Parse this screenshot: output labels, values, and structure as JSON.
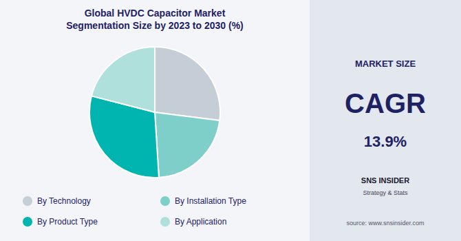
{
  "chart_data": {
    "type": "pie",
    "title": "Global HVDC Capacitor Market\nSegmentation Size by 2023 to 2030 (%)",
    "categories": [
      "By Technology",
      "By Installation Type",
      "By Product Type",
      "By Application"
    ],
    "values": [
      27,
      22,
      30,
      21
    ],
    "colors": [
      "#c5cdd6",
      "#7ecfca",
      "#00b5b0",
      "#b0e0dc"
    ],
    "legend": "bottom",
    "annotations": [
      "MARKET SIZE",
      "CAGR",
      "13.9%",
      "SNS INSIDER",
      "Strategy & Stats",
      "source: www.snsinsider.com"
    ]
  }
}
